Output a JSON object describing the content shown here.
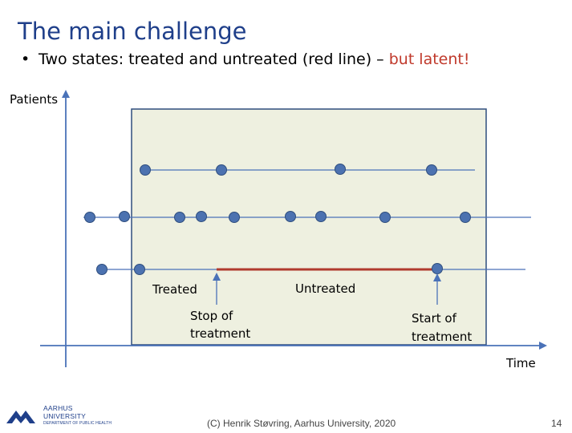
{
  "slide": {
    "title": "The main challenge",
    "bullet": {
      "text": "Two states: treated and untreated (red line) – ",
      "highlight": "but latent!"
    },
    "footer": "(C) Henrik Støvring, Aarhus University, 2020",
    "page_number": "14"
  },
  "logo": {
    "line1": "AARHUS",
    "line2": "UNIVERSITY",
    "line3": "DEPARTMENT OF PUBLIC HEALTH"
  },
  "diagram": {
    "y_axis_label": "Patients",
    "x_axis_label": "Time",
    "labels": {
      "treated": "Treated",
      "untreated": "Untreated",
      "stop_line1": "Stop of",
      "stop_line2": "treatment",
      "start_line1": "Start of",
      "start_line2": "treatment"
    },
    "colors": {
      "window_fill": "#eef0e0",
      "window_border": "#2f4e7e",
      "line": "#4a72b8",
      "marker": "#4c72b0",
      "untreated": "#b03a2e",
      "axis": "#4a72b8"
    }
  }
}
